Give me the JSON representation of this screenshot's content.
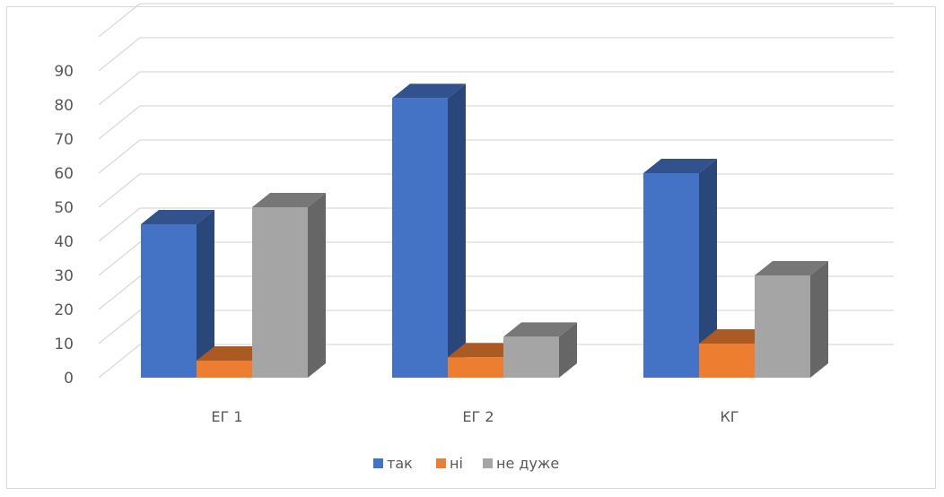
{
  "chart_data": {
    "type": "bar",
    "categories": [
      "ЕГ 1",
      "ЕГ 2",
      "КГ"
    ],
    "series": [
      {
        "name": "так",
        "values": [
          45,
          82,
          60
        ],
        "color": "#4472c4"
      },
      {
        "name": "ні",
        "values": [
          5,
          6,
          10
        ],
        "color": "#ed7d31"
      },
      {
        "name": "не дуже",
        "values": [
          50,
          12,
          30
        ],
        "color": "#a5a5a5"
      }
    ],
    "yticks": [
      0,
      10,
      20,
      30,
      40,
      50,
      60,
      70,
      80,
      90
    ],
    "ylim": [
      0,
      100
    ],
    "grid": true,
    "legend_position": "bottom",
    "style": "3d-clustered-column"
  }
}
